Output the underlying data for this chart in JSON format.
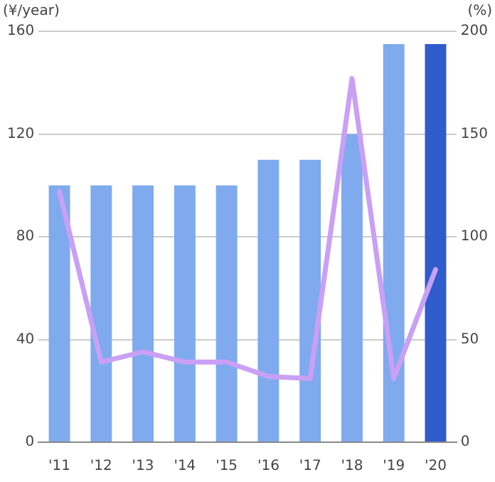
{
  "chart_data": {
    "type": "bar",
    "ylabel": "(¥/year)",
    "y2label": "(%)",
    "categories": [
      "'11",
      "'12",
      "'13",
      "'14",
      "'15",
      "'16",
      "'17",
      "'18",
      "'19",
      "'20"
    ],
    "series": [
      {
        "colors": [
          "#7faaee",
          "#7faaee",
          "#7faaee",
          "#7faaee",
          "#7faaee",
          "#7faaee",
          "#7faaee",
          "#7faaee",
          "#7faaee",
          "#2f5bcc"
        ],
        "values": [
          100,
          100,
          100,
          100,
          100,
          110,
          110,
          120,
          155,
          155
        ]
      },
      {
        "type": "line",
        "axis": "y2",
        "color": "#c9a0f5",
        "values": [
          122,
          39,
          44,
          39,
          39,
          32,
          31,
          177,
          31,
          84
        ]
      }
    ],
    "ylim": [
      0,
      160
    ],
    "yticks": [
      0,
      40,
      80,
      120,
      160
    ],
    "y2lim": [
      0,
      200
    ],
    "y2ticks": [
      0,
      50,
      100,
      150,
      200
    ],
    "grid": "y",
    "legend": false,
    "marker": "none"
  }
}
